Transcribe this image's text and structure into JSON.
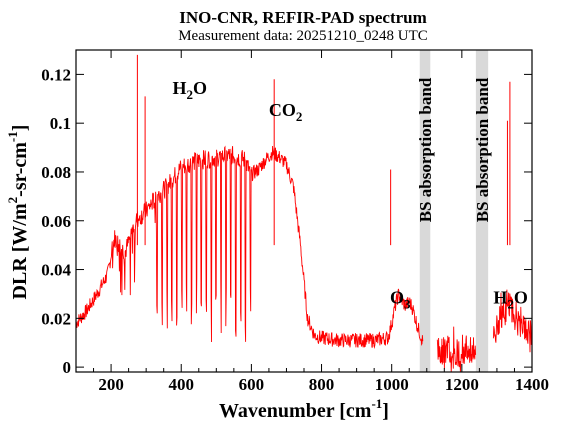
{
  "chart_data": {
    "type": "line",
    "title": "INO-CNR, REFIR-PAD spectrum",
    "subtitle": "Measurement data: 20251210_0248 UTC",
    "xlabel": "Wavenumber [cm",
    "xlabel_sup": "-1",
    "xlabel_end": "]",
    "ylabel_parts": {
      "a": "DLR [W/m",
      "b": "2",
      "c": "-sr-cm",
      "d": "-1",
      "e": "]"
    },
    "xlim": [
      100,
      1400
    ],
    "ylim": [
      -0.002,
      0.13
    ],
    "xticks": [
      200,
      400,
      600,
      800,
      1000,
      1200,
      1400
    ],
    "xtick_labels": [
      "200",
      "400",
      "600",
      "800",
      "1000",
      "1200",
      "1400"
    ],
    "yticks": [
      0,
      0.02,
      0.04,
      0.06,
      0.08,
      0.1,
      0.12
    ],
    "ytick_labels": [
      "0",
      "0.02",
      "0.04",
      "0.06",
      "0.08",
      "0.1",
      "0.12"
    ],
    "series_color": "#ff0000",
    "series": [
      {
        "x": [
          100,
          130,
          160,
          190,
          210,
          240,
          270,
          300,
          330,
          360,
          380,
          400,
          430,
          460,
          500,
          540,
          580,
          600,
          620,
          640,
          660,
          680,
          700,
          720,
          740,
          760,
          780,
          800,
          850,
          900,
          950,
          990,
          1000,
          1010,
          1020,
          1030,
          1040,
          1050,
          1060,
          1075,
          1090
        ],
        "y": [
          0.018,
          0.023,
          0.03,
          0.038,
          0.053,
          0.047,
          0.06,
          0.064,
          0.07,
          0.074,
          0.078,
          0.082,
          0.084,
          0.085,
          0.086,
          0.087,
          0.085,
          0.079,
          0.081,
          0.085,
          0.088,
          0.086,
          0.083,
          0.074,
          0.05,
          0.02,
          0.013,
          0.012,
          0.011,
          0.011,
          0.011,
          0.012,
          0.018,
          0.025,
          0.03,
          0.027,
          0.025,
          0.027,
          0.024,
          0.016,
          0.01
        ]
      },
      {
        "x": [
          1130,
          1160,
          1190,
          1220,
          1240
        ],
        "y": [
          0.006,
          0.007,
          0.006,
          0.006,
          0.008
        ]
      },
      {
        "x": [
          1290,
          1310,
          1320,
          1330,
          1340,
          1350,
          1360,
          1380,
          1400
        ],
        "y": [
          0.011,
          0.02,
          0.022,
          0.025,
          0.026,
          0.02,
          0.018,
          0.016,
          0.015
        ]
      }
    ],
    "peaks": [
      {
        "x": 275,
        "y": 0.128
      },
      {
        "x": 297,
        "y": 0.111
      },
      {
        "x": 665,
        "y": 0.118
      },
      {
        "x": 997,
        "y": 0.081
      },
      {
        "x": 1330,
        "y": 0.101
      },
      {
        "x": 1337,
        "y": 0.117
      }
    ],
    "absorption_bands": [
      {
        "x_start": 1080,
        "x_end": 1110,
        "label": "BS absorption band"
      },
      {
        "x_start": 1240,
        "x_end": 1275,
        "label": "BS absorption band"
      }
    ],
    "annotations": [
      {
        "label": "H",
        "sub": "2",
        "label_end": "O",
        "x": 375,
        "y": 0.112
      },
      {
        "label": "CO",
        "sub": "2",
        "label_end": "",
        "x": 650,
        "y": 0.103
      },
      {
        "label": "O",
        "sub": "3",
        "label_end": "",
        "x": 995,
        "y": 0.026
      },
      {
        "label": "H",
        "sub": "2",
        "label_end": "O",
        "x": 1290,
        "y": 0.026
      }
    ],
    "grid": false
  }
}
